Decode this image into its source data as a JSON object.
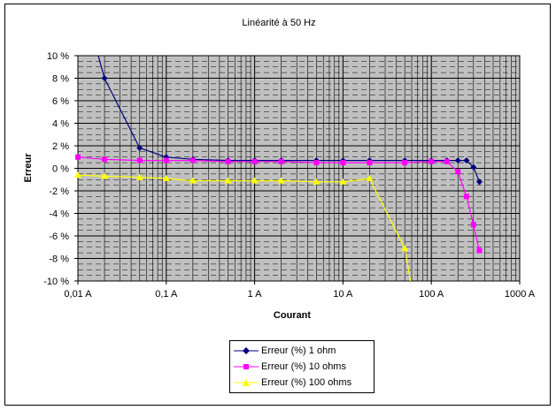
{
  "chart_data": {
    "type": "line",
    "title": "Linéarité à 50 Hz",
    "xlabel": "Courant",
    "ylabel": "Erreur",
    "x_scale": "log",
    "xlim": [
      0.01,
      1000
    ],
    "ylim": [
      -10,
      10
    ],
    "x_ticks": [
      "0,01 A",
      "0,1 A",
      "1 A",
      "10 A",
      "100 A",
      "1000 A"
    ],
    "y_ticks": [
      "10 %",
      "8 %",
      "6 %",
      "4 %",
      "2 %",
      "0 %",
      "-2 %",
      "-4 %",
      "-6 %",
      "-8 %",
      "-10 %"
    ],
    "grid": true,
    "legend_position": "bottom",
    "series": [
      {
        "name": "Erreur (%) 1 ohm",
        "color": "#000080",
        "marker": "diamond",
        "points": [
          [
            0.02,
            8.0
          ],
          [
            0.05,
            1.8
          ],
          [
            0.1,
            1.0
          ],
          [
            0.2,
            0.8
          ],
          [
            0.5,
            0.7
          ],
          [
            1,
            0.7
          ],
          [
            2,
            0.7
          ],
          [
            5,
            0.7
          ],
          [
            10,
            0.7
          ],
          [
            20,
            0.7
          ],
          [
            50,
            0.7
          ],
          [
            100,
            0.7
          ],
          [
            150,
            0.7
          ],
          [
            200,
            0.7
          ],
          [
            250,
            0.7
          ],
          [
            300,
            0.1
          ],
          [
            350,
            -1.2
          ]
        ],
        "extends_from": [
          0.017,
          10.0
        ]
      },
      {
        "name": "Erreur (%) 10 ohms",
        "color": "#FF00FF",
        "marker": "square",
        "points": [
          [
            0.01,
            1.0
          ],
          [
            0.02,
            0.8
          ],
          [
            0.05,
            0.7
          ],
          [
            0.1,
            0.7
          ],
          [
            0.2,
            0.7
          ],
          [
            0.5,
            0.6
          ],
          [
            1,
            0.6
          ],
          [
            2,
            0.6
          ],
          [
            5,
            0.5
          ],
          [
            10,
            0.5
          ],
          [
            20,
            0.5
          ],
          [
            50,
            0.5
          ],
          [
            100,
            0.6
          ],
          [
            150,
            0.6
          ],
          [
            200,
            -0.3
          ],
          [
            250,
            -2.5
          ],
          [
            300,
            -5.0
          ],
          [
            350,
            -7.3
          ]
        ]
      },
      {
        "name": "Erreur (%) 100 ohms",
        "color": "#FFFF00",
        "marker": "triangle",
        "points": [
          [
            0.01,
            -0.6
          ],
          [
            0.02,
            -0.7
          ],
          [
            0.05,
            -0.8
          ],
          [
            0.1,
            -0.9
          ],
          [
            0.2,
            -1.1
          ],
          [
            0.5,
            -1.1
          ],
          [
            1,
            -1.1
          ],
          [
            2,
            -1.1
          ],
          [
            5,
            -1.2
          ],
          [
            10,
            -1.2
          ],
          [
            20,
            -0.9
          ],
          [
            50,
            -7.1
          ]
        ],
        "extends_to": [
          58,
          -10.0
        ]
      }
    ]
  }
}
